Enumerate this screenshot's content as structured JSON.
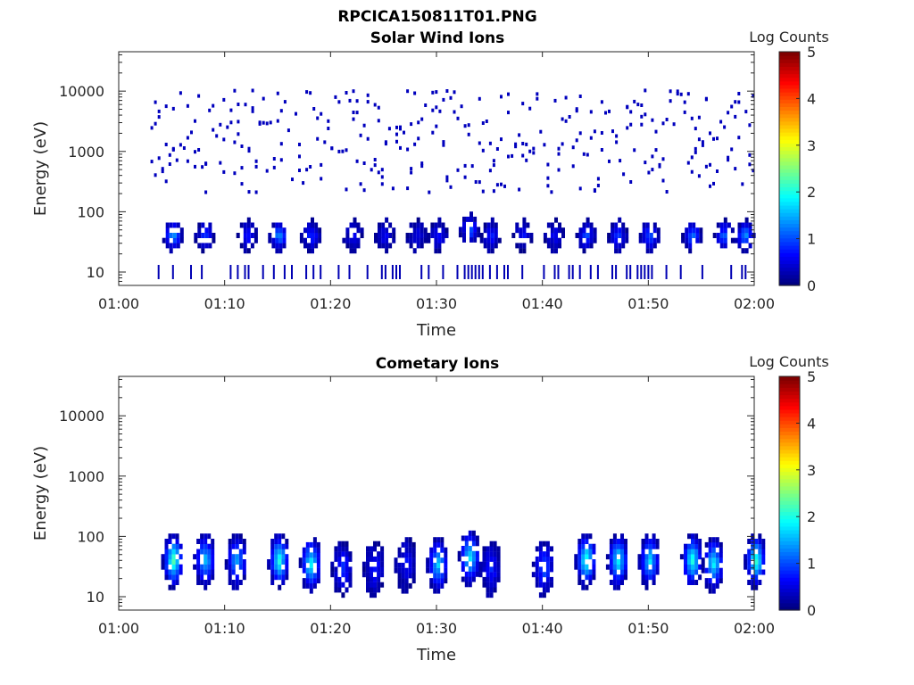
{
  "figure": {
    "title": "RPCICA150811T01.PNG"
  },
  "chart_data": [
    {
      "type": "heatmap",
      "title": "Solar Wind Ions",
      "xlabel": "Time",
      "ylabel": "Energy (eV)",
      "x_range": [
        "01:00",
        "02:00"
      ],
      "x_ticks": [
        "01:00",
        "01:10",
        "01:20",
        "01:30",
        "01:40",
        "01:50",
        "02:00"
      ],
      "y_scale": "log",
      "y_range": [
        6,
        45000
      ],
      "y_ticks": [
        10,
        100,
        1000,
        10000
      ],
      "colorbar": {
        "label": "Log Counts",
        "range": [
          0,
          5
        ],
        "ticks": [
          0,
          1,
          2,
          3,
          4,
          5
        ],
        "colormap": "jet"
      },
      "bursts": [
        {
          "time": "01:05",
          "energy": 40,
          "intensity": 1.4
        },
        {
          "time": "01:08",
          "energy": 40,
          "intensity": 0.8
        },
        {
          "time": "01:12",
          "energy": 40,
          "intensity": 0.7
        },
        {
          "time": "01:15",
          "energy": 40,
          "intensity": 1.3
        },
        {
          "time": "01:18",
          "energy": 40,
          "intensity": 0.8
        },
        {
          "time": "01:22",
          "energy": 40,
          "intensity": 0.5
        },
        {
          "time": "01:25",
          "energy": 40,
          "intensity": 0.5
        },
        {
          "time": "01:28",
          "energy": 40,
          "intensity": 0.5
        },
        {
          "time": "01:30",
          "energy": 40,
          "intensity": 0.6
        },
        {
          "time": "01:33",
          "energy": 50,
          "intensity": 1.0
        },
        {
          "time": "01:35",
          "energy": 40,
          "intensity": 0.7
        },
        {
          "time": "01:38",
          "energy": 40,
          "intensity": 0.6
        },
        {
          "time": "01:41",
          "energy": 40,
          "intensity": 0.5
        },
        {
          "time": "01:44",
          "energy": 40,
          "intensity": 0.9
        },
        {
          "time": "01:47",
          "energy": 40,
          "intensity": 0.8
        },
        {
          "time": "01:50",
          "energy": 40,
          "intensity": 1.0
        },
        {
          "time": "01:54",
          "energy": 40,
          "intensity": 1.1
        },
        {
          "time": "01:57",
          "energy": 40,
          "intensity": 1.1
        },
        {
          "time": "01:59",
          "energy": 40,
          "intensity": 1.3
        }
      ]
    },
    {
      "type": "heatmap",
      "title": "Cometary Ions",
      "xlabel": "Time",
      "ylabel": "Energy (eV)",
      "x_range": [
        "01:00",
        "02:00"
      ],
      "x_ticks": [
        "01:00",
        "01:10",
        "01:20",
        "01:30",
        "01:40",
        "01:50",
        "02:00"
      ],
      "y_scale": "log",
      "y_range": [
        6,
        45000
      ],
      "y_ticks": [
        10,
        100,
        1000,
        10000
      ],
      "colorbar": {
        "label": "Log Counts",
        "range": [
          0,
          5
        ],
        "ticks": [
          0,
          1,
          2,
          3,
          4,
          5
        ],
        "colormap": "jet"
      },
      "bursts": [
        {
          "time": "01:05",
          "energy": 40,
          "intensity": 2.2
        },
        {
          "time": "01:08",
          "energy": 40,
          "intensity": 1.6
        },
        {
          "time": "01:11",
          "energy": 40,
          "intensity": 1.4
        },
        {
          "time": "01:15",
          "energy": 40,
          "intensity": 2.0
        },
        {
          "time": "01:18",
          "energy": 35,
          "intensity": 1.9
        },
        {
          "time": "01:21",
          "energy": 30,
          "intensity": 0.8
        },
        {
          "time": "01:24",
          "energy": 30,
          "intensity": 0.7
        },
        {
          "time": "01:27",
          "energy": 35,
          "intensity": 0.6
        },
        {
          "time": "01:30",
          "energy": 35,
          "intensity": 1.6
        },
        {
          "time": "01:33",
          "energy": 45,
          "intensity": 1.8
        },
        {
          "time": "01:35",
          "energy": 30,
          "intensity": 0.7
        },
        {
          "time": "01:40",
          "energy": 30,
          "intensity": 1.0
        },
        {
          "time": "01:44",
          "energy": 40,
          "intensity": 2.1
        },
        {
          "time": "01:47",
          "energy": 40,
          "intensity": 1.9
        },
        {
          "time": "01:50",
          "energy": 40,
          "intensity": 1.7
        },
        {
          "time": "01:54",
          "energy": 40,
          "intensity": 2.0
        },
        {
          "time": "01:56",
          "energy": 35,
          "intensity": 1.8
        },
        {
          "time": "02:00",
          "energy": 40,
          "intensity": 2.1
        }
      ]
    }
  ]
}
